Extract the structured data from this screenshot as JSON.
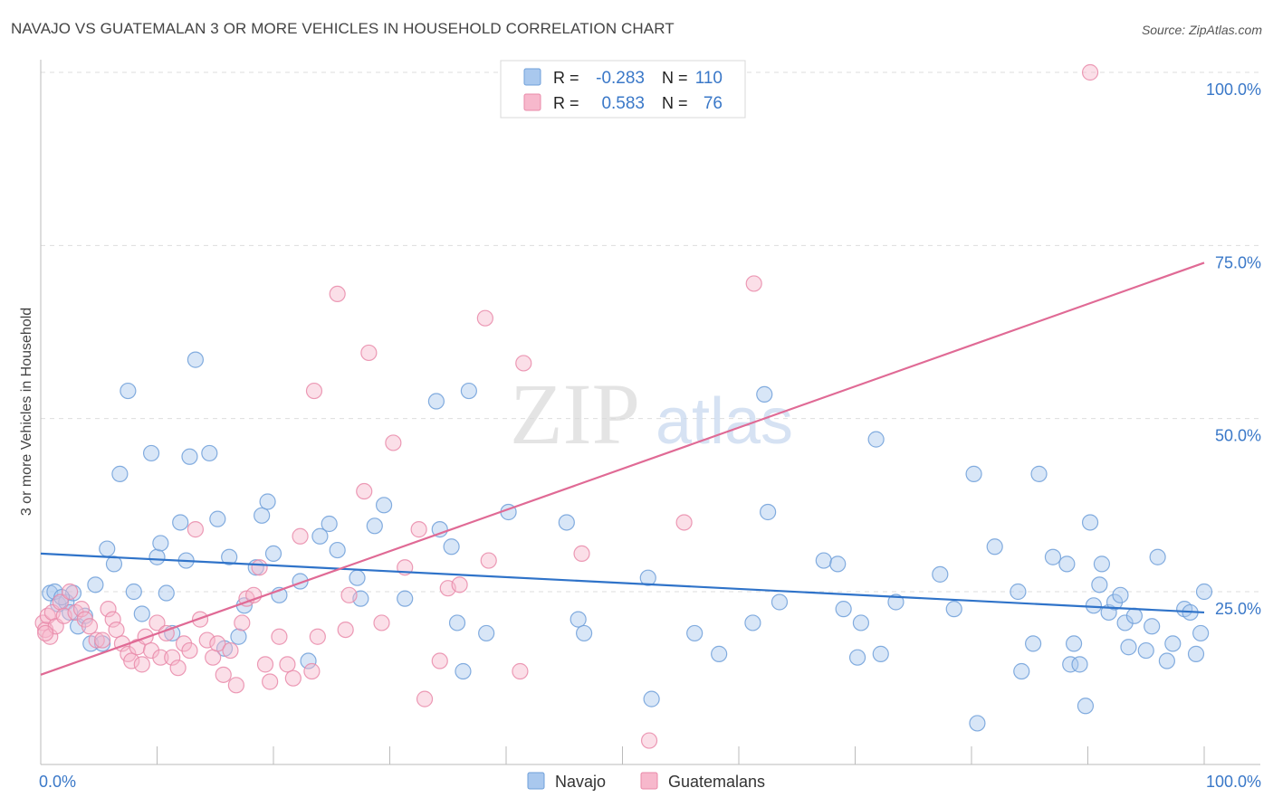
{
  "title": "NAVAJO VS GUATEMALAN 3 OR MORE VEHICLES IN HOUSEHOLD CORRELATION CHART",
  "source": "Source: ZipAtlas.com",
  "watermark": {
    "zip": "ZIP",
    "atlas": "atlas"
  },
  "colors": {
    "navajo_fill": "#a9c8ee",
    "navajo_stroke": "#6f9fd9",
    "navajo_line": "#2f73c9",
    "guatemalan_fill": "#f7b8cc",
    "guatemalan_stroke": "#e98aa9",
    "guatemalan_line": "#e06a95",
    "value_text": "#3a78c8",
    "grid": "#dddddd"
  },
  "stats_box": {
    "r_label": "R =",
    "n_label": "N =",
    "rows": [
      {
        "series": "Navajo",
        "r": "-0.283",
        "n": "110"
      },
      {
        "series": "Guatemalans",
        "r": "0.583",
        "n": "76"
      }
    ]
  },
  "chart_data": {
    "type": "scatter",
    "title": "NAVAJO VS GUATEMALAN 3 OR MORE VEHICLES IN HOUSEHOLD CORRELATION CHART",
    "xlabel": "",
    "ylabel": "3 or more Vehicles in Household",
    "xlim": [
      0,
      100
    ],
    "ylim": [
      0,
      100
    ],
    "x_tick_labels": [
      "0.0%",
      "100.0%"
    ],
    "y_tick_labels": [
      "25.0%",
      "50.0%",
      "75.0%",
      "100.0%"
    ],
    "y_ticks": [
      25,
      50,
      75,
      100
    ],
    "grid": true,
    "legend_position": "bottom-center",
    "series": [
      {
        "name": "Navajo",
        "trend": {
          "x": [
            0,
            100
          ],
          "y": [
            30.5,
            22.0
          ]
        },
        "points": [
          [
            0.8,
            24.8
          ],
          [
            1.5,
            23.2
          ],
          [
            2.2,
            23.5
          ],
          [
            2.8,
            24.8
          ],
          [
            3.2,
            20.0
          ],
          [
            3.8,
            21.5
          ],
          [
            4.3,
            17.5
          ],
          [
            4.7,
            26.0
          ],
          [
            5.3,
            17.5
          ],
          [
            5.7,
            31.2
          ],
          [
            6.3,
            29.0
          ],
          [
            6.8,
            42.0
          ],
          [
            7.5,
            54.0
          ],
          [
            8.0,
            25.0
          ],
          [
            8.7,
            21.8
          ],
          [
            9.5,
            45.0
          ],
          [
            10.0,
            30.0
          ],
          [
            10.3,
            32.0
          ],
          [
            10.8,
            24.8
          ],
          [
            11.3,
            19.0
          ],
          [
            12.0,
            35.0
          ],
          [
            12.5,
            29.5
          ],
          [
            12.8,
            44.5
          ],
          [
            13.3,
            58.5
          ],
          [
            14.5,
            45.0
          ],
          [
            15.2,
            35.5
          ],
          [
            15.8,
            16.8
          ],
          [
            16.2,
            30.0
          ],
          [
            17.0,
            18.5
          ],
          [
            17.5,
            23.0
          ],
          [
            18.5,
            28.5
          ],
          [
            19.0,
            36.0
          ],
          [
            19.5,
            38.0
          ],
          [
            20.0,
            30.5
          ],
          [
            20.5,
            24.5
          ],
          [
            22.3,
            26.5
          ],
          [
            23.0,
            15.0
          ],
          [
            24.0,
            33.0
          ],
          [
            24.8,
            34.8
          ],
          [
            25.5,
            31.0
          ],
          [
            27.2,
            27.0
          ],
          [
            27.5,
            24.0
          ],
          [
            28.7,
            34.5
          ],
          [
            29.5,
            37.5
          ],
          [
            31.3,
            24.0
          ],
          [
            34.0,
            52.5
          ],
          [
            34.3,
            34.0
          ],
          [
            35.3,
            31.5
          ],
          [
            35.8,
            20.5
          ],
          [
            36.3,
            13.5
          ],
          [
            36.8,
            54.0
          ],
          [
            38.3,
            19.0
          ],
          [
            40.2,
            36.5
          ],
          [
            45.2,
            35.0
          ],
          [
            46.2,
            21.0
          ],
          [
            46.7,
            19.0
          ],
          [
            52.2,
            27.0
          ],
          [
            52.5,
            9.5
          ],
          [
            56.2,
            19.0
          ],
          [
            58.3,
            16.0
          ],
          [
            61.2,
            20.5
          ],
          [
            62.2,
            53.5
          ],
          [
            62.5,
            36.5
          ],
          [
            63.5,
            23.5
          ],
          [
            67.3,
            29.5
          ],
          [
            68.5,
            29.0
          ],
          [
            69.0,
            22.5
          ],
          [
            70.2,
            15.5
          ],
          [
            70.5,
            20.5
          ],
          [
            71.8,
            47.0
          ],
          [
            72.2,
            16.0
          ],
          [
            73.5,
            23.5
          ],
          [
            77.3,
            27.5
          ],
          [
            78.5,
            22.5
          ],
          [
            80.2,
            42.0
          ],
          [
            80.5,
            6.0
          ],
          [
            82.0,
            31.5
          ],
          [
            84.0,
            25.0
          ],
          [
            84.3,
            13.5
          ],
          [
            85.3,
            17.5
          ],
          [
            85.8,
            42.0
          ],
          [
            87.0,
            30.0
          ],
          [
            88.2,
            29.0
          ],
          [
            88.5,
            14.5
          ],
          [
            88.8,
            17.5
          ],
          [
            89.3,
            14.5
          ],
          [
            89.8,
            8.5
          ],
          [
            90.2,
            35.0
          ],
          [
            90.5,
            23.0
          ],
          [
            91.0,
            26.0
          ],
          [
            91.2,
            29.0
          ],
          [
            91.8,
            22.0
          ],
          [
            92.3,
            23.5
          ],
          [
            92.8,
            24.5
          ],
          [
            93.2,
            20.5
          ],
          [
            93.5,
            17.0
          ],
          [
            94.0,
            21.5
          ],
          [
            95.0,
            16.5
          ],
          [
            95.5,
            20.0
          ],
          [
            96.0,
            30.0
          ],
          [
            96.8,
            15.0
          ],
          [
            97.3,
            17.5
          ],
          [
            98.3,
            22.5
          ],
          [
            98.8,
            22.0
          ],
          [
            99.3,
            16.0
          ],
          [
            99.7,
            19.0
          ],
          [
            100.0,
            25.0
          ],
          [
            1.2,
            25.0
          ],
          [
            2.5,
            22.0
          ],
          [
            1.8,
            24.2
          ]
        ]
      },
      {
        "name": "Guatemalans",
        "trend": {
          "x": [
            0,
            100
          ],
          "y": [
            13.0,
            72.5
          ]
        },
        "points": [
          [
            0.2,
            20.5
          ],
          [
            0.4,
            19.5
          ],
          [
            0.6,
            21.5
          ],
          [
            0.8,
            18.5
          ],
          [
            1.0,
            22.0
          ],
          [
            1.3,
            20.0
          ],
          [
            1.7,
            23.5
          ],
          [
            2.0,
            21.5
          ],
          [
            2.5,
            25.0
          ],
          [
            3.0,
            22.0
          ],
          [
            3.5,
            22.5
          ],
          [
            3.8,
            21.0
          ],
          [
            4.2,
            20.0
          ],
          [
            4.8,
            18.0
          ],
          [
            5.3,
            18.0
          ],
          [
            5.8,
            22.5
          ],
          [
            6.2,
            21.0
          ],
          [
            6.5,
            19.5
          ],
          [
            7.0,
            17.5
          ],
          [
            7.5,
            16.0
          ],
          [
            7.8,
            15.0
          ],
          [
            8.3,
            17.0
          ],
          [
            8.7,
            14.5
          ],
          [
            9.0,
            18.5
          ],
          [
            9.5,
            16.5
          ],
          [
            10.0,
            20.5
          ],
          [
            10.3,
            15.5
          ],
          [
            10.8,
            19.0
          ],
          [
            11.3,
            15.5
          ],
          [
            11.8,
            14.0
          ],
          [
            12.3,
            17.5
          ],
          [
            12.8,
            16.5
          ],
          [
            13.3,
            34.0
          ],
          [
            13.7,
            21.0
          ],
          [
            14.3,
            18.0
          ],
          [
            14.8,
            15.5
          ],
          [
            15.2,
            17.5
          ],
          [
            15.7,
            13.0
          ],
          [
            16.3,
            16.5
          ],
          [
            16.8,
            11.5
          ],
          [
            17.3,
            20.5
          ],
          [
            17.7,
            24.0
          ],
          [
            18.3,
            24.5
          ],
          [
            18.8,
            28.5
          ],
          [
            19.3,
            14.5
          ],
          [
            19.7,
            12.0
          ],
          [
            20.5,
            18.5
          ],
          [
            21.2,
            14.5
          ],
          [
            21.7,
            12.5
          ],
          [
            22.3,
            33.0
          ],
          [
            23.3,
            13.5
          ],
          [
            23.5,
            54.0
          ],
          [
            23.8,
            18.5
          ],
          [
            25.5,
            68.0
          ],
          [
            26.5,
            24.5
          ],
          [
            26.2,
            19.5
          ],
          [
            27.8,
            39.5
          ],
          [
            28.2,
            59.5
          ],
          [
            29.3,
            20.5
          ],
          [
            30.3,
            46.5
          ],
          [
            31.3,
            28.5
          ],
          [
            32.5,
            34.0
          ],
          [
            33.0,
            9.5
          ],
          [
            34.3,
            15.0
          ],
          [
            35.0,
            25.5
          ],
          [
            36.0,
            26.0
          ],
          [
            38.2,
            64.5
          ],
          [
            38.5,
            29.5
          ],
          [
            41.5,
            58.0
          ],
          [
            41.2,
            13.5
          ],
          [
            46.5,
            30.5
          ],
          [
            52.3,
            3.5
          ],
          [
            55.3,
            35.0
          ],
          [
            61.3,
            69.5
          ],
          [
            90.2,
            100.0
          ],
          [
            0.4,
            19.0
          ]
        ]
      }
    ]
  },
  "legend": [
    {
      "label": "Navajo",
      "series": 0
    },
    {
      "label": "Guatemalans",
      "series": 1
    }
  ]
}
